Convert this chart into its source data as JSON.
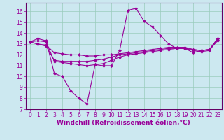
{
  "background_color": "#cce8f0",
  "grid_color": "#99ccbb",
  "line_color": "#990099",
  "spine_color": "#660066",
  "xlim": [
    -0.5,
    23.5
  ],
  "ylim": [
    7,
    16.8
  ],
  "yticks": [
    7,
    8,
    9,
    10,
    11,
    12,
    13,
    14,
    15,
    16
  ],
  "xticks": [
    0,
    1,
    2,
    3,
    4,
    5,
    6,
    7,
    8,
    9,
    10,
    11,
    12,
    13,
    14,
    15,
    16,
    17,
    18,
    19,
    20,
    21,
    22,
    23
  ],
  "xlabel": "Windchill (Refroidissement éolien,°C)",
  "series": [
    [
      13.2,
      13.5,
      13.3,
      10.3,
      10.0,
      8.7,
      8.0,
      7.5,
      11.1,
      11.0,
      11.0,
      12.4,
      16.1,
      16.3,
      15.1,
      14.6,
      13.8,
      13.0,
      12.6,
      12.6,
      12.2,
      12.4,
      12.5,
      13.3
    ],
    [
      13.2,
      13.3,
      13.2,
      11.4,
      11.3,
      11.2,
      11.1,
      11.0,
      11.1,
      11.2,
      11.5,
      11.8,
      12.0,
      12.1,
      12.2,
      12.3,
      12.4,
      12.5,
      12.6,
      12.6,
      12.5,
      12.4,
      12.5,
      13.5
    ],
    [
      13.2,
      13.0,
      12.8,
      11.5,
      11.4,
      11.4,
      11.4,
      11.4,
      11.5,
      11.6,
      11.8,
      12.0,
      12.1,
      12.2,
      12.3,
      12.4,
      12.5,
      12.6,
      12.6,
      12.6,
      12.4,
      12.3,
      12.4,
      13.4
    ],
    [
      13.2,
      13.0,
      12.9,
      12.2,
      12.1,
      12.0,
      12.0,
      11.9,
      11.9,
      12.0,
      12.0,
      12.1,
      12.2,
      12.3,
      12.4,
      12.5,
      12.6,
      12.7,
      12.7,
      12.7,
      12.5,
      12.4,
      12.5,
      13.5
    ]
  ],
  "marker": "D",
  "markersize": 2.0,
  "linewidth": 0.8,
  "tick_fontsize": 5.5,
  "label_fontsize": 6.5
}
